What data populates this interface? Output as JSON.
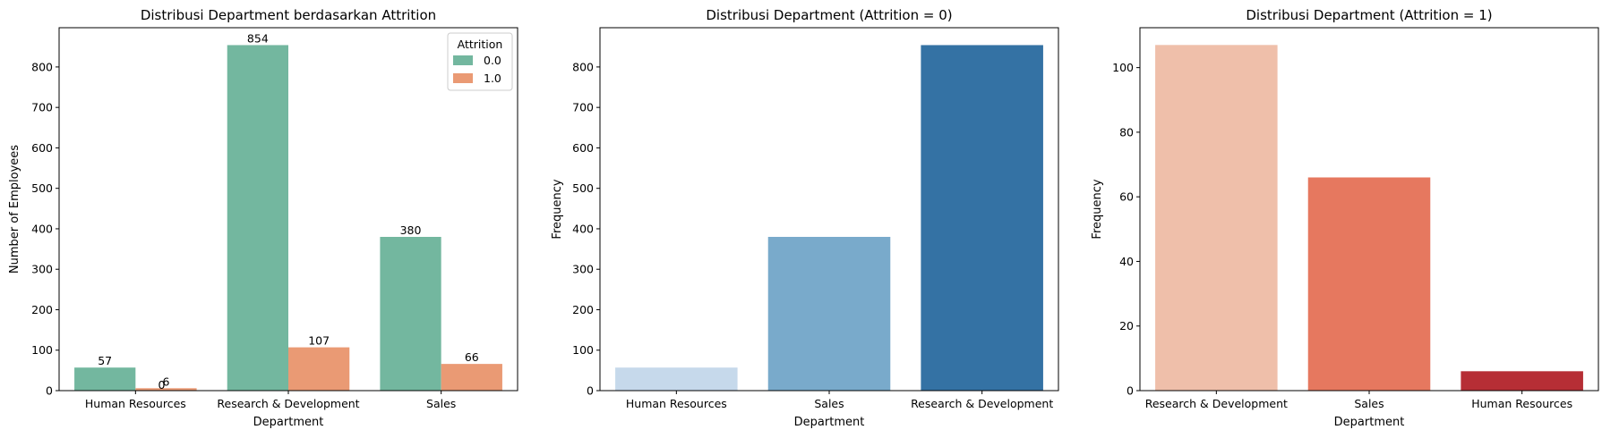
{
  "chart_data": [
    {
      "type": "bar",
      "title": "Distribusi Department berdasarkan Attrition",
      "xlabel": "Department",
      "ylabel": "Number of Employees",
      "categories": [
        "Human Resources",
        "Research & Development",
        "Sales"
      ],
      "series": [
        {
          "name": "0.0",
          "values": [
            57,
            854,
            380
          ],
          "color": "#73b79f"
        },
        {
          "name": "1.0",
          "values": [
            6,
            107,
            66
          ],
          "color": "#ea9a74"
        }
      ],
      "ylim": [
        0,
        897
      ],
      "yticks": [
        0,
        100,
        200,
        300,
        400,
        500,
        600,
        700,
        800
      ],
      "data_labels": [
        {
          "category": 0,
          "series": 0,
          "text": "57"
        },
        {
          "category": 0,
          "series": 1,
          "text": "6"
        },
        {
          "category": 0,
          "series": 1,
          "text": "0",
          "stacked": true
        },
        {
          "category": 1,
          "series": 0,
          "text": "854"
        },
        {
          "category": 1,
          "series": 1,
          "text": "107"
        },
        {
          "category": 2,
          "series": 0,
          "text": "380"
        },
        {
          "category": 2,
          "series": 1,
          "text": "66"
        }
      ],
      "legend": {
        "title": "Attrition",
        "position": "top-right"
      }
    },
    {
      "type": "bar",
      "title": "Distribusi Department (Attrition = 0)",
      "xlabel": "Department",
      "ylabel": "Frequency",
      "categories": [
        "Human Resources",
        "Sales",
        "Research & Development"
      ],
      "values": [
        57,
        380,
        854
      ],
      "colors": [
        "#c6d9eb",
        "#79aacb",
        "#3472a4"
      ],
      "ylim": [
        0,
        897
      ],
      "yticks": [
        0,
        100,
        200,
        300,
        400,
        500,
        600,
        700,
        800
      ]
    },
    {
      "type": "bar",
      "title": "Distribusi Department (Attrition = 1)",
      "xlabel": "Department",
      "ylabel": "Frequency",
      "categories": [
        "Research & Development",
        "Sales",
        "Human Resources"
      ],
      "values": [
        107,
        66,
        6
      ],
      "colors": [
        "#efbfaa",
        "#e6785f",
        "#b62e35"
      ],
      "ylim": [
        0,
        112.35
      ],
      "yticks": [
        0,
        20,
        40,
        60,
        80,
        100
      ]
    }
  ]
}
